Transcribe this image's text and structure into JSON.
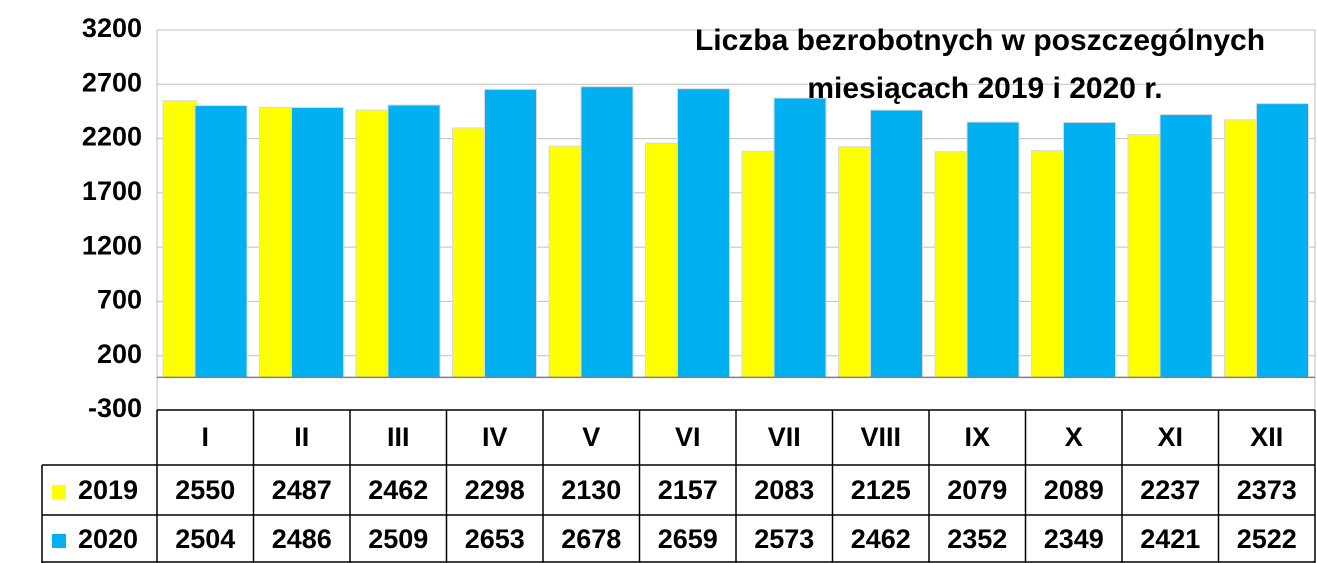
{
  "chart_data": {
    "type": "bar",
    "title": [
      "Liczba bezrobotnych w poszczególnych",
      "miesiącach 2019 i 2020 r."
    ],
    "categories": [
      "I",
      "II",
      "III",
      "IV",
      "V",
      "VI",
      "VII",
      "VIII",
      "IX",
      "X",
      "XI",
      "XII"
    ],
    "series": [
      {
        "name": "2019",
        "color": "#ffff00",
        "values": [
          2550,
          2487,
          2462,
          2298,
          2130,
          2157,
          2083,
          2125,
          2079,
          2089,
          2237,
          2373
        ]
      },
      {
        "name": "2020",
        "color": "#00b0f0",
        "values": [
          2504,
          2486,
          2509,
          2653,
          2678,
          2659,
          2573,
          2462,
          2352,
          2349,
          2421,
          2522
        ]
      }
    ],
    "ylim": [
      -300,
      3200
    ],
    "yticks": [
      -300,
      200,
      700,
      1200,
      1700,
      2200,
      2700,
      3200
    ],
    "grid": true
  }
}
